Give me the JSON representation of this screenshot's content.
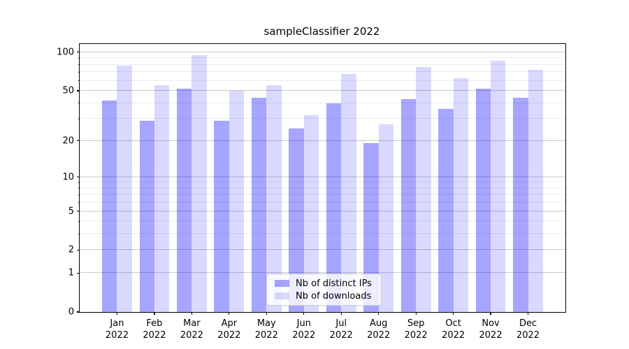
{
  "figure": {
    "title": "sampleClassifier 2022"
  },
  "chart_data": {
    "type": "bar",
    "title": "sampleClassifier 2022",
    "x_categories": [
      "Jan",
      "Feb",
      "Mar",
      "Apr",
      "May",
      "Jun",
      "Jul",
      "Aug",
      "Sep",
      "Oct",
      "Nov",
      "Dec"
    ],
    "x_sublabel": "2022",
    "series": [
      {
        "name": "Nb of distinct IPs",
        "color": "rgba(0,0,255,0.35)",
        "values": [
          42,
          29,
          52,
          29,
          44,
          25,
          40,
          19,
          43,
          36,
          52,
          44
        ]
      },
      {
        "name": "Nb of downloads",
        "color": "rgba(0,0,255,0.15)",
        "values": [
          79,
          55,
          95,
          50,
          55,
          32,
          68,
          27,
          77,
          63,
          86,
          73
        ]
      }
    ],
    "yscale": "symlog (log10 of 1+value)",
    "ylim": [
      0,
      116
    ],
    "xlim_units": [
      -1,
      12
    ],
    "y_major_ticks": [
      0,
      1,
      2,
      5,
      10,
      20,
      50,
      100
    ],
    "y_minor_ticks": [
      3,
      4,
      6,
      7,
      8,
      9,
      30,
      40,
      60,
      70,
      80,
      90
    ],
    "grid": "both",
    "legend_position": "lower center",
    "colors": {
      "bar_distinct_ips": "rgba(0,0,255,0.35)",
      "bar_downloads": "rgba(0,0,255,0.15)",
      "grid_major": "#c9c9c9",
      "grid_minor": "#ececec",
      "axis": "#000000"
    }
  }
}
